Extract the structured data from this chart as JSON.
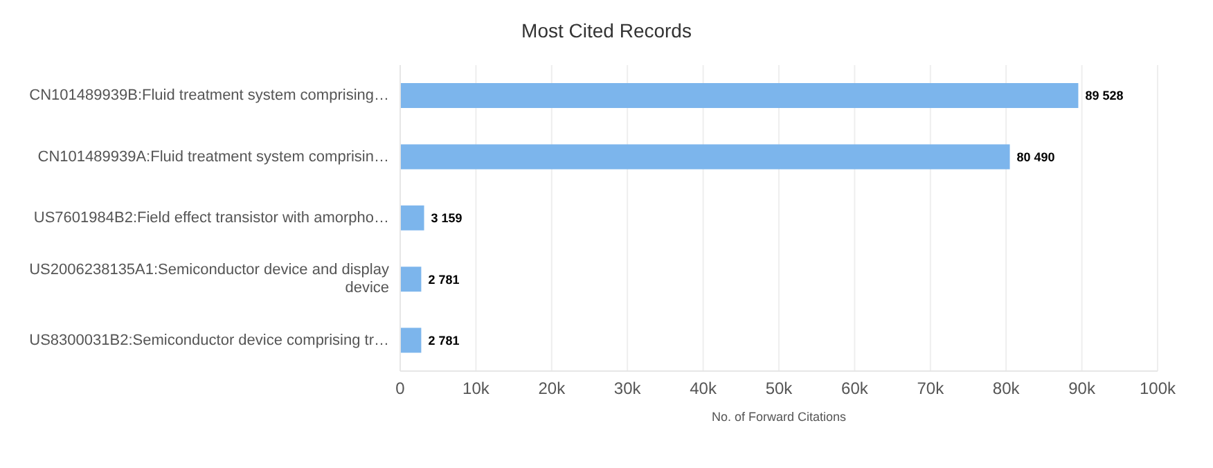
{
  "chart_data": {
    "type": "bar",
    "orientation": "horizontal",
    "title": "Most Cited Records",
    "xlabel": "No. of Forward Citations",
    "categories": [
      "CN101489939B:Fluid treatment system comprising…",
      "CN101489939A:Fluid treatment system comprisin…",
      "US7601984B2:Field effect transistor with amorpho…",
      "US2006238135A1:Semiconductor device and display device",
      "US8300031B2:Semiconductor device comprising tr…"
    ],
    "values": [
      89528,
      80490,
      3159,
      2781,
      2781
    ],
    "value_labels": [
      "89 528",
      "80 490",
      "3 159",
      "2 781",
      "2 781"
    ],
    "color": "#7cb5ec",
    "xlim": [
      0,
      100000
    ],
    "xticks": [
      0,
      {
        "value": 10000,
        "label": "10k"
      },
      {
        "value": 20000,
        "label": "20k"
      },
      {
        "value": 30000,
        "label": "30k"
      },
      {
        "value": 40000,
        "label": "40k"
      },
      {
        "value": 50000,
        "label": "50k"
      },
      {
        "value": 60000,
        "label": "60k"
      },
      {
        "value": 70000,
        "label": "70k"
      },
      {
        "value": 80000,
        "label": "80k"
      },
      {
        "value": 90000,
        "label": "90k"
      },
      {
        "value": 100000,
        "label": "100k"
      }
    ],
    "grid": "x",
    "legend": false
  }
}
